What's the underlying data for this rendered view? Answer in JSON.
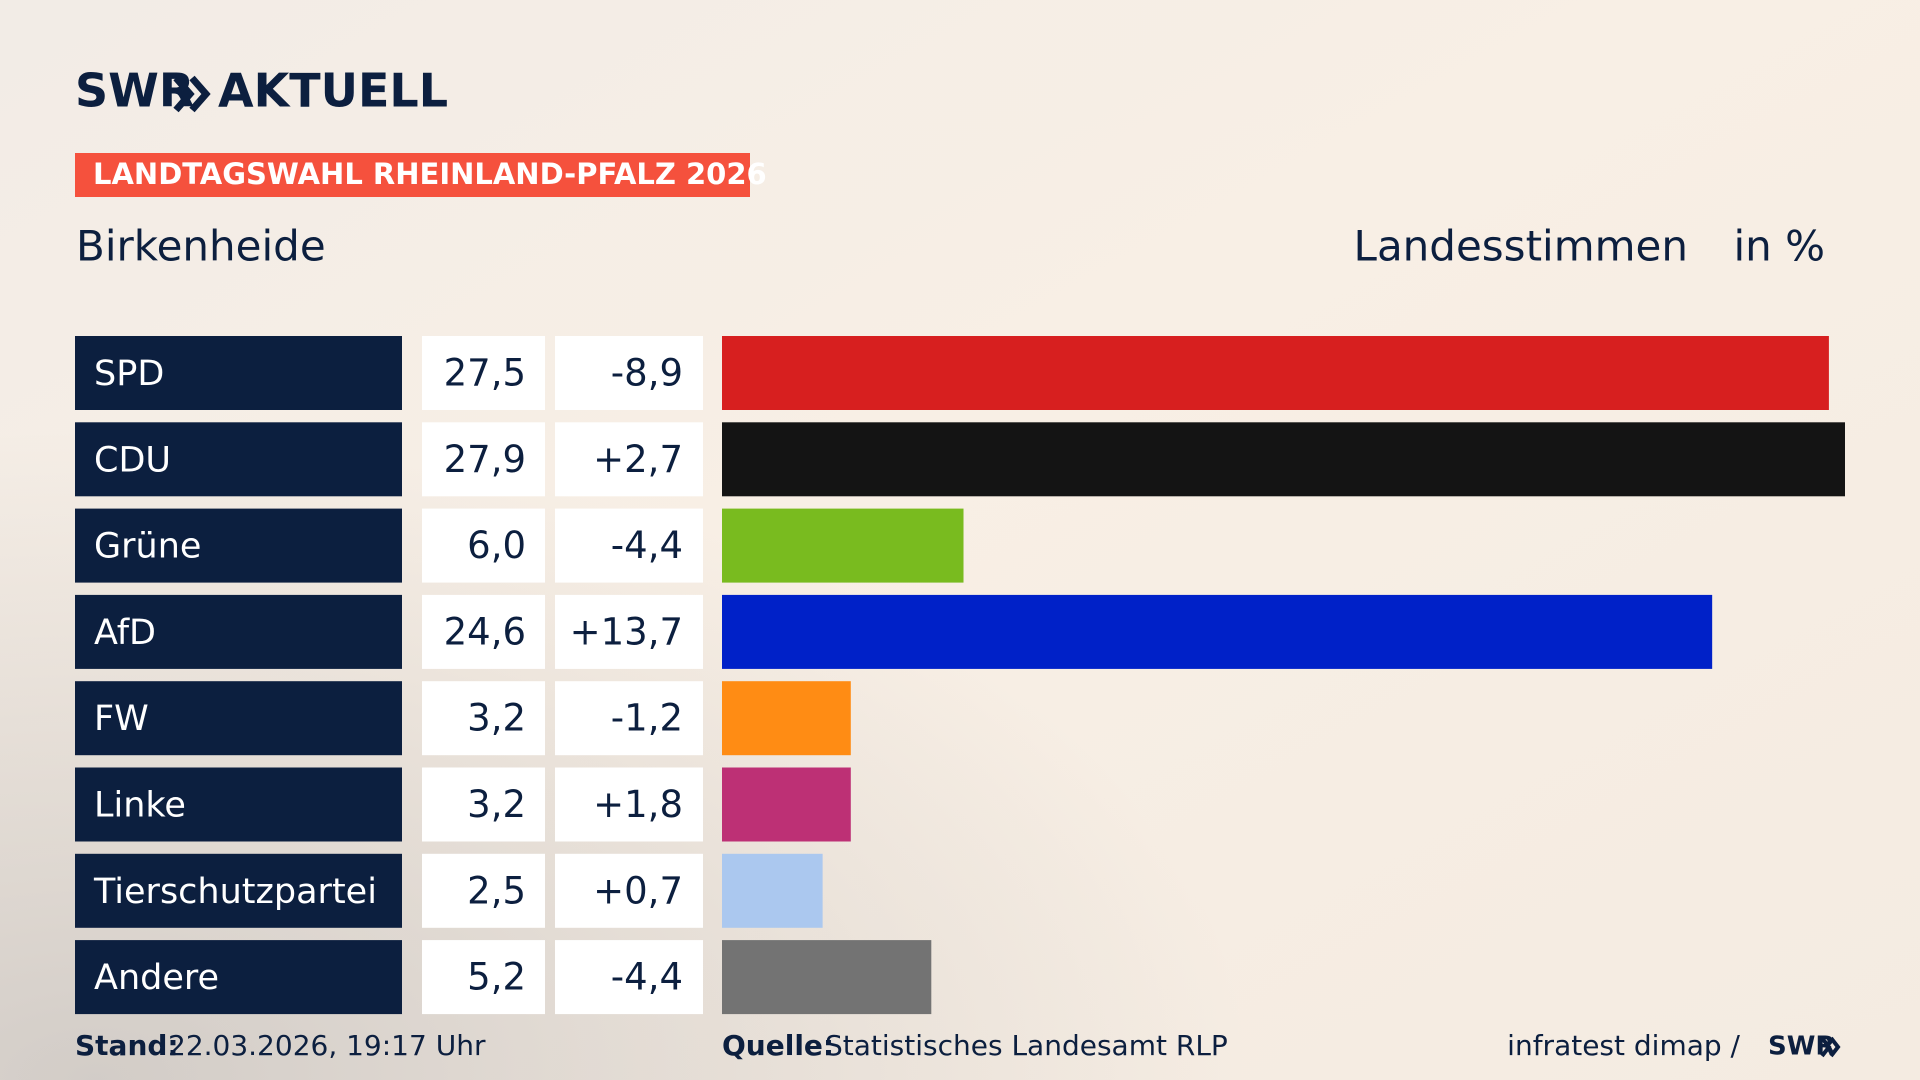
{
  "chart_data": {
    "type": "bar",
    "brand": "SWR",
    "brand_suffix": "AKTUELL",
    "banner": "LANDTAGSWAHL RHEINLAND-PFALZ 2026",
    "subtitle": "Birkenheide",
    "value_title": "Landesstimmen",
    "unit": "in %",
    "categories": [
      "SPD",
      "CDU",
      "Grüne",
      "AfD",
      "FW",
      "Linke",
      "Tierschutzpartei",
      "Andere"
    ],
    "values": [
      27.5,
      27.9,
      6.0,
      24.6,
      3.2,
      3.2,
      2.5,
      5.2
    ],
    "value_labels": [
      "27,5",
      "27,9",
      "6,0",
      "24,6",
      "3,2",
      "3,2",
      "2,5",
      "5,2"
    ],
    "changes": [
      -8.9,
      2.7,
      -4.4,
      13.7,
      -1.2,
      1.8,
      0.7,
      -4.4
    ],
    "change_labels": [
      "-8,9",
      "+2,7",
      "-4,4",
      "+13,7",
      "-1,2",
      "+1,8",
      "+0,7",
      "-4,4"
    ],
    "colors": [
      "#d71f1f",
      "#141414",
      "#79bb1f",
      "#0021c8",
      "#ff8c14",
      "#bd3075",
      "#abc8ef",
      "#737373"
    ],
    "stand_label": "Stand:",
    "stand_value": "22.03.2026, 19:17 Uhr",
    "source_label": "Quelle:",
    "source_value": "Statistisches Landesamt RLP",
    "credit": "infratest dimap /",
    "credit_brand": "SWR"
  }
}
